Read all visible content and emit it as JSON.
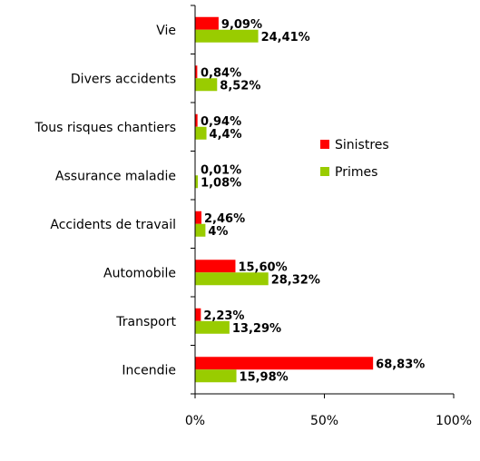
{
  "chart_data": {
    "type": "bar",
    "orientation": "horizontal",
    "title": "",
    "xlabel": "",
    "ylabel": "",
    "xlim": [
      0,
      100
    ],
    "x_ticks": [
      0,
      50,
      100
    ],
    "x_tick_labels": [
      "0%",
      "50%",
      "100%"
    ],
    "grid": false,
    "legend_position": "right",
    "categories": [
      "Vie",
      "Divers accidents",
      "Tous risques chantiers",
      "Assurance maladie",
      "Accidents de travail",
      "Automobile",
      "Transport",
      "Incendie"
    ],
    "series": [
      {
        "name": "Sinistres",
        "color": "#ff0000",
        "values": [
          9.09,
          0.84,
          0.94,
          0.01,
          2.46,
          15.6,
          2.23,
          68.83
        ],
        "labels": [
          "9,09%",
          "0,84%",
          "0,94%",
          "0,01%",
          "2,46%",
          "15,60%",
          "2,23%",
          "68,83%"
        ]
      },
      {
        "name": "Primes",
        "color": "#99cc00",
        "values": [
          24.41,
          8.52,
          4.4,
          1.08,
          4,
          28.32,
          13.29,
          15.98
        ],
        "labels": [
          "24,41%",
          "8,52%",
          "4,4%",
          "1,08%",
          "4%",
          "28,32%",
          "13,29%",
          "15,98%"
        ]
      }
    ]
  }
}
